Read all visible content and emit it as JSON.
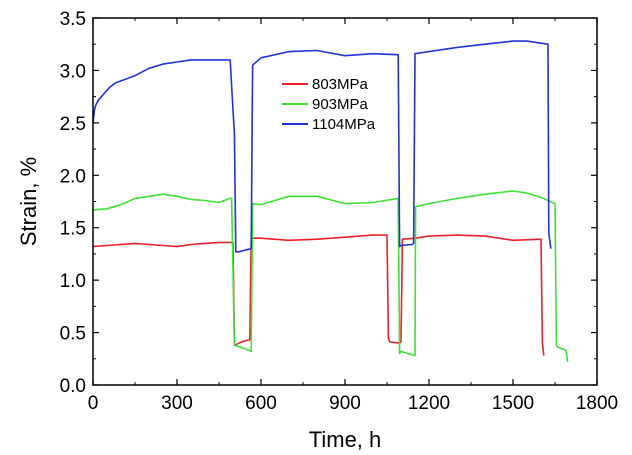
{
  "chart_data": {
    "type": "line",
    "xlabel": "Time, h",
    "ylabel": "Strain, %",
    "xlim": [
      0,
      1800
    ],
    "ylim": [
      0,
      3.5
    ],
    "xticks": [
      "0",
      "300",
      "600",
      "900",
      "1200",
      "1500",
      "1800"
    ],
    "yticks": [
      "0.0",
      "0.5",
      "1.0",
      "1.5",
      "2.0",
      "2.5",
      "3.0",
      "3.5"
    ],
    "grid": false,
    "legend_position": "top-center",
    "series": [
      {
        "name": "803MPa",
        "color": "#e8212a",
        "x": [
          0,
          50,
          100,
          150,
          200,
          250,
          300,
          350,
          400,
          450,
          490,
          500,
          505,
          540,
          560,
          565,
          600,
          700,
          800,
          900,
          1000,
          1050,
          1055,
          1060,
          1095,
          1100,
          1105,
          1150,
          1200,
          1300,
          1400,
          1500,
          1600,
          1605,
          1610
        ],
        "y": [
          1.32,
          1.33,
          1.34,
          1.35,
          1.34,
          1.33,
          1.32,
          1.34,
          1.35,
          1.36,
          1.36,
          1.36,
          0.38,
          0.42,
          0.43,
          1.4,
          1.4,
          1.38,
          1.39,
          1.41,
          1.43,
          1.43,
          0.45,
          0.41,
          0.4,
          0.41,
          1.39,
          1.4,
          1.42,
          1.43,
          1.42,
          1.38,
          1.39,
          0.4,
          0.28
        ]
      },
      {
        "name": "903MPa",
        "color": "#3de234",
        "x": [
          0,
          50,
          100,
          150,
          200,
          250,
          300,
          350,
          400,
          450,
          490,
          495,
          505,
          540,
          565,
          570,
          600,
          700,
          800,
          900,
          1000,
          1090,
          1095,
          1100,
          1150,
          1152,
          1200,
          1300,
          1400,
          1500,
          1550,
          1600,
          1650,
          1655,
          1660,
          1690,
          1695
        ],
        "y": [
          1.67,
          1.68,
          1.72,
          1.78,
          1.8,
          1.82,
          1.8,
          1.77,
          1.76,
          1.74,
          1.78,
          1.78,
          0.38,
          0.35,
          0.32,
          1.73,
          1.72,
          1.8,
          1.8,
          1.73,
          1.74,
          1.78,
          0.3,
          0.32,
          0.28,
          1.7,
          1.73,
          1.78,
          1.82,
          1.85,
          1.83,
          1.79,
          1.73,
          0.38,
          0.36,
          0.33,
          0.22
        ]
      },
      {
        "name": "1104MPa",
        "color": "#2233d6",
        "x": [
          0,
          5,
          10,
          20,
          40,
          60,
          80,
          100,
          150,
          200,
          250,
          300,
          350,
          400,
          450,
          490,
          500,
          505,
          510,
          520,
          550,
          565,
          570,
          600,
          700,
          800,
          900,
          1000,
          1090,
          1095,
          1100,
          1140,
          1145,
          1150,
          1200,
          1300,
          1400,
          1500,
          1550,
          1600,
          1625,
          1628,
          1635
        ],
        "y": [
          2.5,
          2.62,
          2.67,
          2.72,
          2.78,
          2.84,
          2.88,
          2.9,
          2.95,
          3.02,
          3.06,
          3.08,
          3.1,
          3.1,
          3.1,
          3.1,
          2.62,
          2.4,
          1.27,
          1.27,
          1.29,
          1.3,
          3.05,
          3.12,
          3.18,
          3.19,
          3.14,
          3.16,
          3.15,
          1.32,
          1.33,
          1.34,
          1.35,
          3.16,
          3.18,
          3.22,
          3.25,
          3.28,
          3.28,
          3.26,
          3.25,
          1.45,
          1.3
        ]
      }
    ]
  }
}
